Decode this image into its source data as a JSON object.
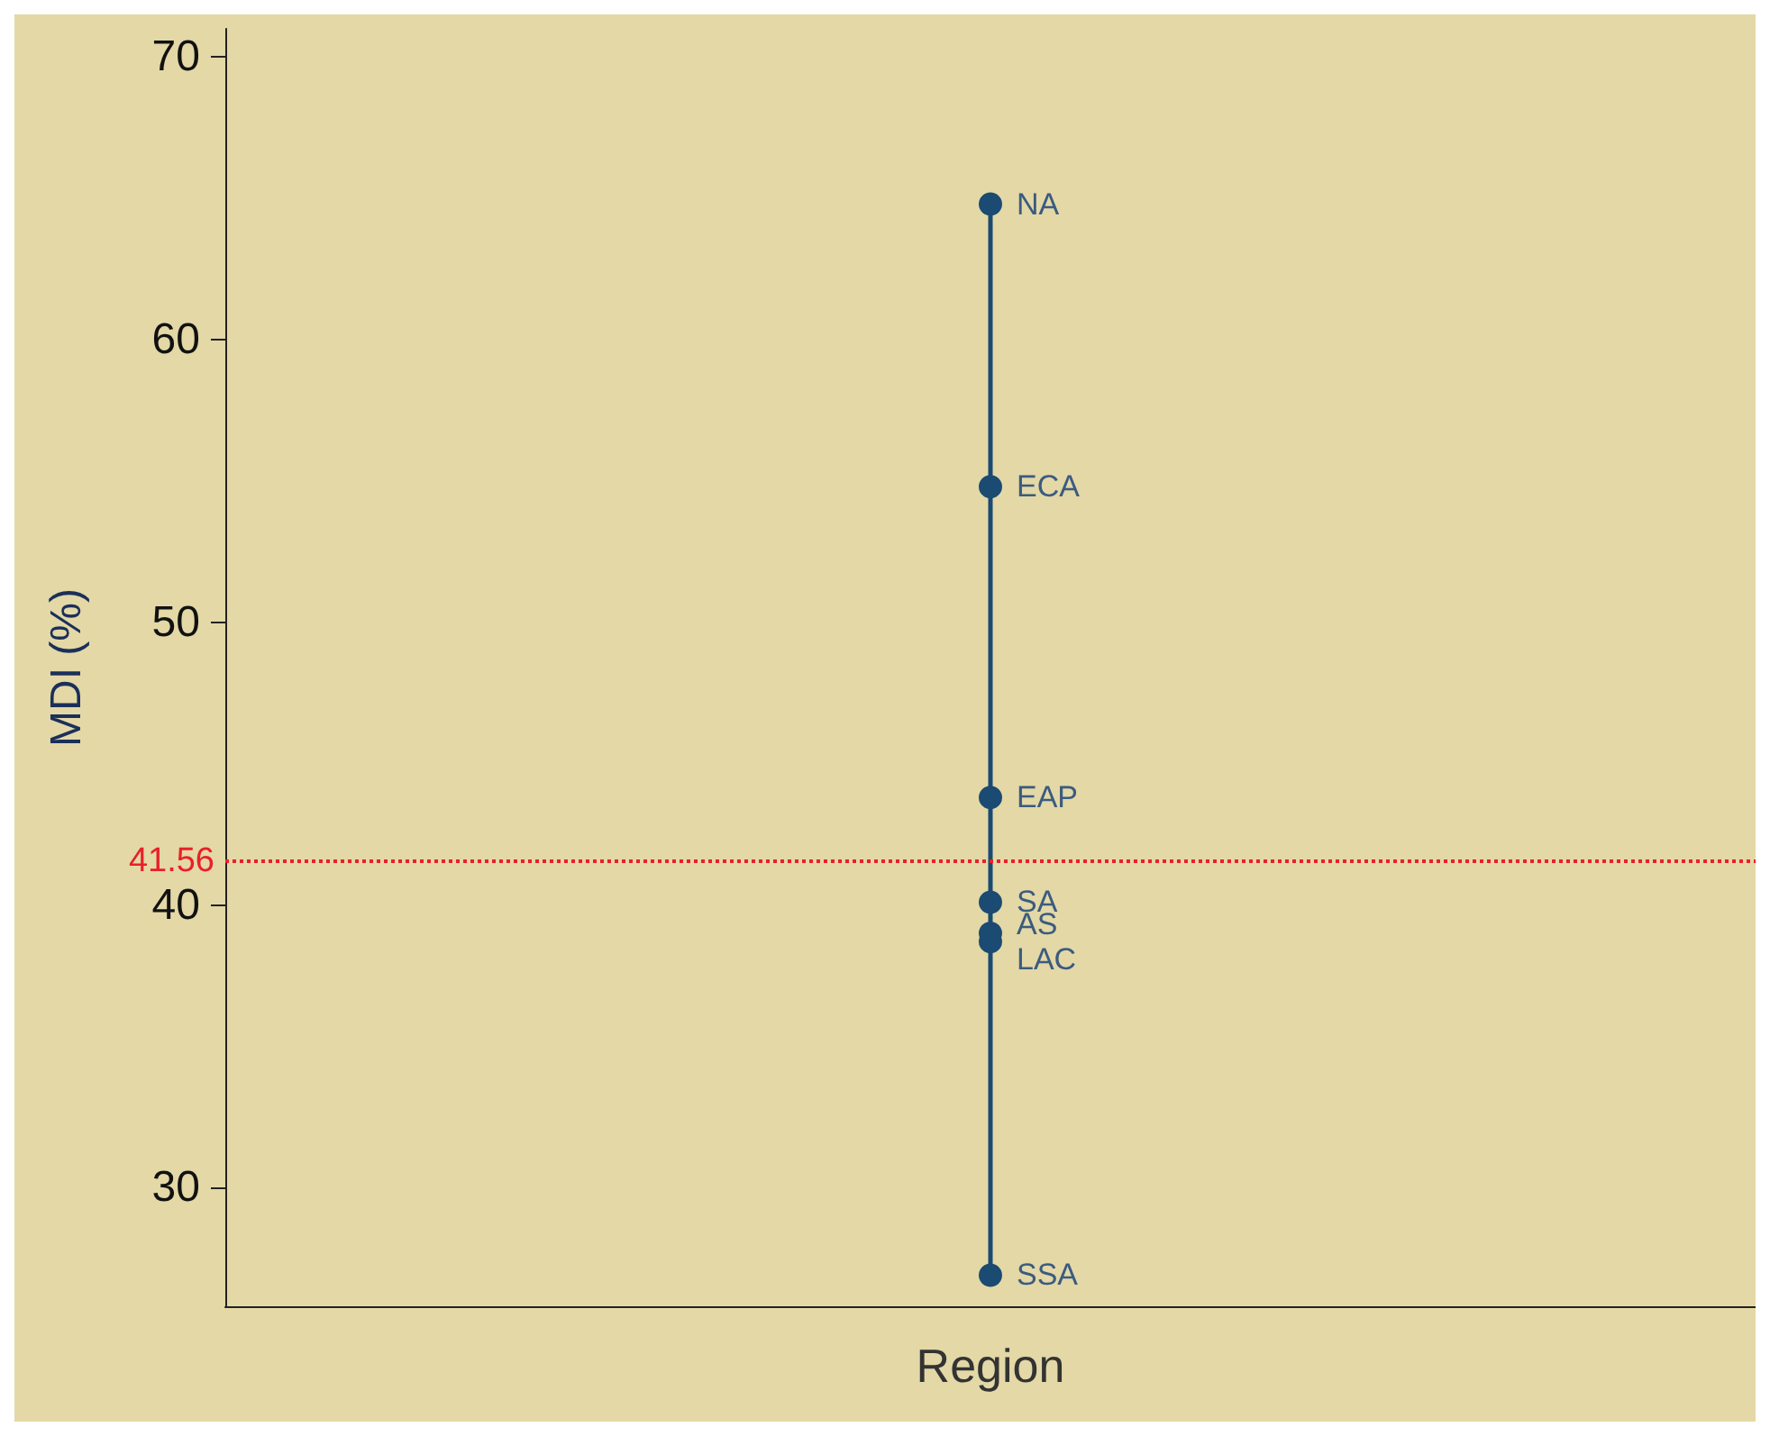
{
  "chart_data": {
    "type": "line",
    "categories": [
      "Region"
    ],
    "ylabel": "MDI (%)",
    "ylim": [
      25.8,
      71
    ],
    "yticks": [
      30,
      40,
      50,
      60,
      70
    ],
    "grid": false,
    "marker": "circle",
    "line_style": "solid",
    "series": [
      {
        "color": "#1b4a72",
        "x": [
          "Region",
          "Region",
          "Region",
          "Region",
          "Region",
          "Region",
          "Region"
        ],
        "values": [
          64.8,
          54.8,
          43.8,
          40.1,
          39.0,
          38.7,
          26.9
        ],
        "value_labels": [
          "NA",
          "ECA",
          "EAP",
          "SA",
          "AS",
          "LAC",
          "SSA"
        ]
      }
    ],
    "ref_lines": [
      {
        "axis": "y",
        "value": 41.56,
        "label": "41.56",
        "color": "#e8202a",
        "line_style": "dotted"
      }
    ]
  }
}
